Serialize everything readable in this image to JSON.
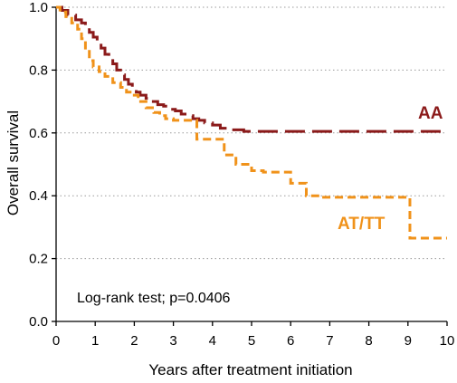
{
  "chart_data": {
    "type": "line",
    "title": "",
    "xlabel": "Years after treatment initiation",
    "ylabel": "Overall survival",
    "xlim": [
      0,
      10
    ],
    "ylim": [
      0,
      1.0
    ],
    "x_ticks": [
      "0",
      "1",
      "2",
      "3",
      "4",
      "5",
      "6",
      "7",
      "8",
      "9",
      "10"
    ],
    "y_ticks": [
      "0.0",
      "0.2",
      "0.4",
      "0.6",
      "0.8",
      "1.0"
    ],
    "grid": "horizontal dotted",
    "annotation": "Log-rank test; p=0.0406",
    "series": [
      {
        "name": "AA",
        "color": "#8b1a1a",
        "style": "long-dash step",
        "x": [
          0,
          0.15,
          0.3,
          0.5,
          0.65,
          0.75,
          0.85,
          0.95,
          1.05,
          1.15,
          1.25,
          1.35,
          1.45,
          1.55,
          1.65,
          1.75,
          1.85,
          1.95,
          2.05,
          2.15,
          2.3,
          2.45,
          2.6,
          2.75,
          2.9,
          3.05,
          3.2,
          3.35,
          3.5,
          3.65,
          3.8,
          4.0,
          4.2,
          4.5,
          4.8,
          5.1,
          10
        ],
        "y": [
          1.0,
          0.99,
          0.975,
          0.96,
          0.95,
          0.935,
          0.92,
          0.905,
          0.89,
          0.87,
          0.85,
          0.835,
          0.82,
          0.8,
          0.785,
          0.77,
          0.755,
          0.74,
          0.73,
          0.72,
          0.71,
          0.7,
          0.69,
          0.685,
          0.675,
          0.67,
          0.66,
          0.655,
          0.645,
          0.64,
          0.632,
          0.625,
          0.615,
          0.61,
          0.605,
          0.605,
          0.605
        ]
      },
      {
        "name": "AT/TT",
        "color": "#f0921a",
        "style": "short-dash step",
        "x": [
          0,
          0.1,
          0.25,
          0.4,
          0.55,
          0.65,
          0.75,
          0.85,
          0.95,
          1.1,
          1.25,
          1.45,
          1.65,
          1.8,
          1.95,
          2.1,
          2.3,
          2.5,
          2.65,
          2.8,
          3.0,
          3.6,
          4.3,
          4.6,
          5.0,
          5.3,
          6.0,
          6.4,
          6.8,
          7.5,
          9.05,
          10
        ],
        "y": [
          1.0,
          0.985,
          0.97,
          0.95,
          0.93,
          0.9,
          0.87,
          0.83,
          0.81,
          0.795,
          0.78,
          0.76,
          0.745,
          0.73,
          0.72,
          0.7,
          0.68,
          0.665,
          0.655,
          0.645,
          0.64,
          0.58,
          0.53,
          0.5,
          0.48,
          0.475,
          0.44,
          0.4,
          0.395,
          0.395,
          0.265,
          0.265
        ]
      }
    ]
  }
}
